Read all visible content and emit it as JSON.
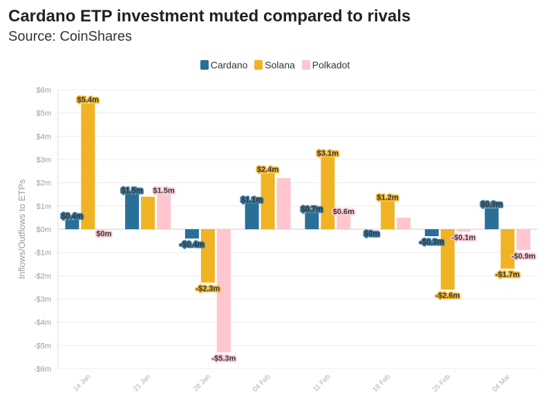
{
  "header": {
    "title": "Cardano ETP investment muted compared to rivals",
    "subtitle": "Source: CoinShares"
  },
  "legend": [
    {
      "name": "Cardano",
      "color": "#2a6f97"
    },
    {
      "name": "Solana",
      "color": "#f0b323"
    },
    {
      "name": "Polkadot",
      "color": "#ffc6d0"
    }
  ],
  "chart_data": {
    "type": "bar",
    "title": "Cardano ETP investment muted compared to rivals",
    "subtitle": "Source: CoinShares",
    "xlabel": "",
    "ylabel": "Inflows/Outflows to ETPs",
    "ylim": [
      -6,
      6
    ],
    "yticks": [
      6,
      5,
      4,
      3,
      2,
      1,
      0,
      -1,
      -2,
      -3,
      -4,
      -5,
      -6
    ],
    "ytick_labels": [
      "$6m",
      "$5m",
      "$4m",
      "$3m",
      "$2m",
      "$1m",
      "$0m",
      "-$1m",
      "-$2m",
      "-$3m",
      "-$4m",
      "-$5m",
      "-$6m"
    ],
    "categories": [
      "14 Jan",
      "21 Jan",
      "28 Jan",
      "04 Feb",
      "11 Feb",
      "18 Feb",
      "25 Feb",
      "04 Mar"
    ],
    "series": [
      {
        "name": "Cardano",
        "color": "#2a6f97",
        "values": [
          0.4,
          1.5,
          -0.4,
          1.1,
          0.7,
          0,
          -0.3,
          0.9
        ],
        "labels": [
          "$0.4m",
          "$1.5m",
          "-$0.4m",
          "$1.1m",
          "$0.7m",
          "$0m",
          "-$0.3m",
          "$0.9m"
        ]
      },
      {
        "name": "Solana",
        "color": "#f0b323",
        "values": [
          5.4,
          1.4,
          -2.3,
          2.4,
          3.1,
          1.2,
          -2.6,
          -1.7
        ],
        "labels": [
          "$5.4m",
          "",
          "-$2.3m",
          "$2.4m",
          "$3.1m",
          "$1.2m",
          "-$2.6m",
          "-$1.7m"
        ]
      },
      {
        "name": "Polkadot",
        "color": "#ffc6d0",
        "values": [
          0,
          1.5,
          -5.3,
          2.2,
          0.6,
          0.5,
          -0.1,
          -0.9
        ],
        "labels": [
          "$0m",
          "$1.5m",
          "-$5.3m",
          "",
          "$0.6m",
          "",
          "-$0.1m",
          "-$0.9m"
        ]
      }
    ],
    "grid": true,
    "legend_position": "top-center"
  }
}
